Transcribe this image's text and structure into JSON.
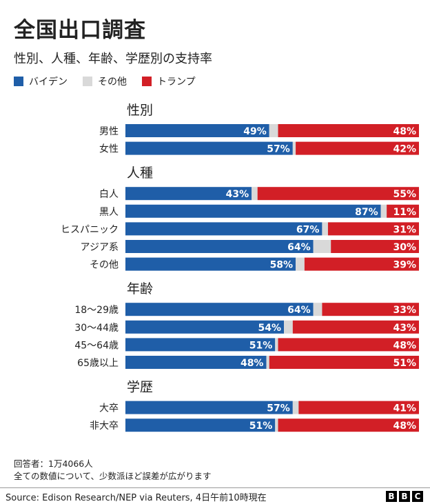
{
  "title": "全国出口調査",
  "subtitle": "性別、人種、年齢、学歴別の支持率",
  "colors": {
    "biden": "#1f5ea8",
    "other": "#d9d9d9",
    "trump": "#d21f26"
  },
  "legend": [
    {
      "label": "バイデン",
      "color": "#1f5ea8"
    },
    {
      "label": "その他",
      "color": "#d9d9d9"
    },
    {
      "label": "トランプ",
      "color": "#d21f26"
    }
  ],
  "chart_data": {
    "type": "bar",
    "stacked": true,
    "orientation": "horizontal",
    "unit": "%",
    "series_order": [
      "バイデン",
      "その他",
      "トランプ"
    ],
    "groups": [
      {
        "title": "性別",
        "rows": [
          {
            "label": "男性",
            "biden": 49,
            "trump": 48
          },
          {
            "label": "女性",
            "biden": 57,
            "trump": 42
          }
        ]
      },
      {
        "title": "人種",
        "rows": [
          {
            "label": "白人",
            "biden": 43,
            "trump": 55
          },
          {
            "label": "黒人",
            "biden": 87,
            "trump": 11
          },
          {
            "label": "ヒスパニック",
            "biden": 67,
            "trump": 31
          },
          {
            "label": "アジア系",
            "biden": 64,
            "trump": 30
          },
          {
            "label": "その他",
            "biden": 58,
            "trump": 39
          }
        ]
      },
      {
        "title": "年齢",
        "rows": [
          {
            "label": "18〜29歳",
            "biden": 64,
            "trump": 33
          },
          {
            "label": "30〜44歳",
            "biden": 54,
            "trump": 43
          },
          {
            "label": "45〜64歳",
            "biden": 51,
            "trump": 48
          },
          {
            "label": "65歳以上",
            "biden": 48,
            "trump": 51
          }
        ]
      },
      {
        "title": "学歴",
        "rows": [
          {
            "label": "大卒",
            "biden": 57,
            "trump": 41
          },
          {
            "label": "非大卒",
            "biden": 51,
            "trump": 48
          }
        ]
      }
    ]
  },
  "notes": [
    "回答者：1万4066人",
    "全ての数値について、少数派ほど誤差が広がります"
  ],
  "source": "Source: Edison Research/NEP via Reuters,  4日午前10時現在",
  "logo": [
    "B",
    "B",
    "C"
  ]
}
